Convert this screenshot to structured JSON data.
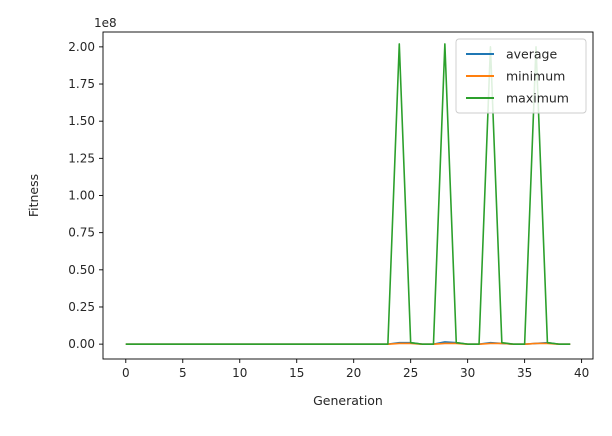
{
  "chart_data": {
    "type": "line",
    "title": "",
    "xlabel": "Generation",
    "ylabel": "Fitness",
    "scale_label": "1e8",
    "xlim": [
      -2,
      41
    ],
    "ylim": [
      -0.1,
      2.1
    ],
    "xticks": [
      0,
      5,
      10,
      15,
      20,
      25,
      30,
      35,
      40
    ],
    "xtick_labels": [
      "0",
      "5",
      "10",
      "15",
      "20",
      "25",
      "30",
      "35",
      "40"
    ],
    "yticks": [
      0,
      0.25,
      0.5,
      0.75,
      1.0,
      1.25,
      1.5,
      1.75,
      2.0
    ],
    "ytick_labels": [
      "0.00",
      "0.25",
      "0.50",
      "0.75",
      "1.00",
      "1.25",
      "1.50",
      "1.75",
      "2.00"
    ],
    "grid": false,
    "legend_position": "top-right",
    "x": [
      0,
      1,
      2,
      3,
      4,
      5,
      6,
      7,
      8,
      9,
      10,
      11,
      12,
      13,
      14,
      15,
      16,
      17,
      18,
      19,
      20,
      21,
      22,
      23,
      24,
      25,
      26,
      27,
      28,
      29,
      30,
      31,
      32,
      33,
      34,
      35,
      36,
      37,
      38,
      39
    ],
    "series": [
      {
        "name": "average",
        "color": "#1f77b4",
        "values": [
          0,
          0,
          0,
          0,
          0,
          0,
          0,
          0,
          0,
          0,
          0,
          0,
          0,
          0,
          0,
          0,
          0,
          0,
          0,
          0,
          0,
          0,
          0,
          0,
          0.01,
          0.01,
          0,
          0,
          0.015,
          0.01,
          0,
          0,
          0.01,
          0.005,
          0,
          0,
          0.005,
          0.01,
          0,
          0
        ]
      },
      {
        "name": "minimum",
        "color": "#ff7f0e",
        "values": [
          0,
          0,
          0,
          0,
          0,
          0,
          0,
          0,
          0,
          0,
          0,
          0,
          0,
          0,
          0,
          0,
          0,
          0,
          0,
          0,
          0,
          0,
          0,
          0,
          0.005,
          0.005,
          0,
          0,
          0.005,
          0.005,
          0,
          0,
          0.005,
          0.005,
          0,
          0,
          0.005,
          0.005,
          0,
          0
        ]
      },
      {
        "name": "maximum",
        "color": "#2ca02c",
        "values": [
          0,
          0,
          0,
          0,
          0,
          0,
          0,
          0,
          0,
          0,
          0,
          0,
          0,
          0,
          0,
          0,
          0,
          0,
          0,
          0,
          0,
          0,
          0,
          0,
          2.02,
          0.01,
          0,
          0,
          2.02,
          0.01,
          0,
          0,
          2.0,
          0.01,
          0,
          0,
          2.0,
          0.01,
          0,
          0
        ]
      }
    ]
  }
}
